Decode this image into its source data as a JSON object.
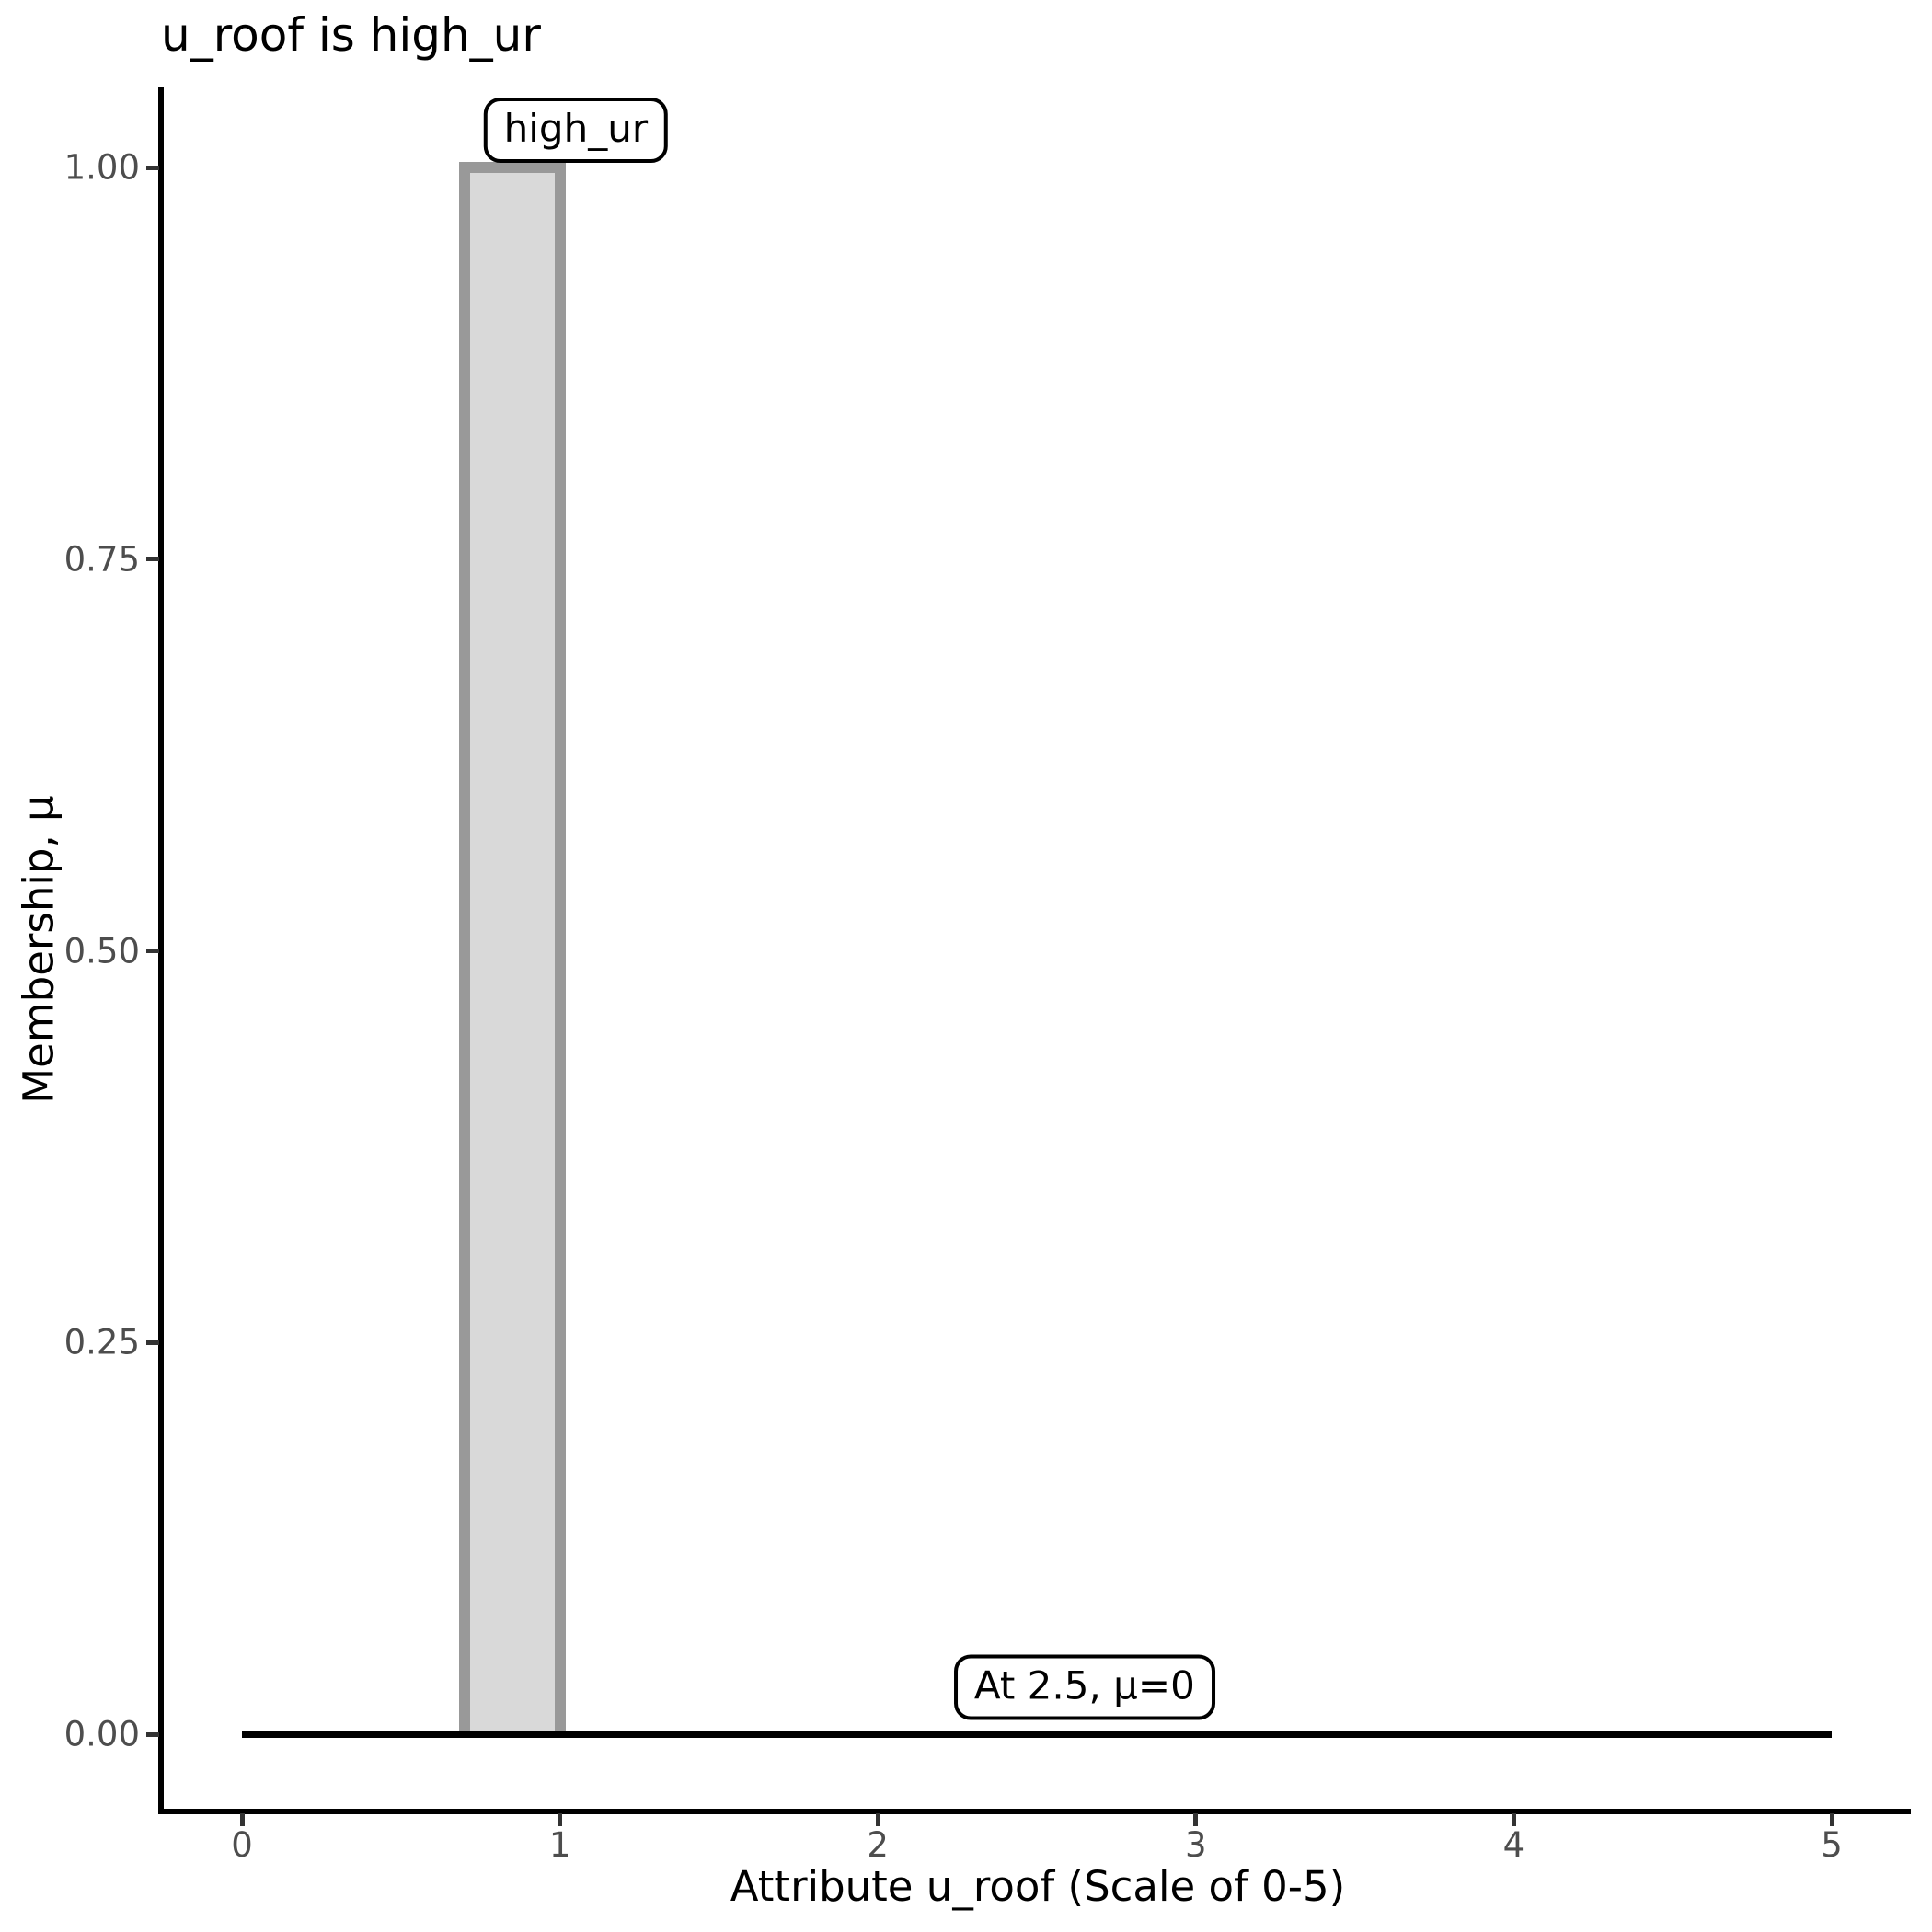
{
  "figure": {
    "title": "u_roof is high_ur",
    "background": "#FFFFFF"
  },
  "colors": {
    "bar_fill": "#D9D9D9",
    "bar_border": "#999999",
    "axis_line": "#000000",
    "tick_mark": "#333333",
    "tick_label": "#4D4D4D",
    "title_text": "#000000",
    "baseline": "#000000",
    "annotation_box_fill": "#FFFFFF",
    "annotation_box_border": "#000000"
  },
  "chart_data": {
    "type": "area",
    "title": "u_roof is high_ur",
    "xlabel": "Attribute u_roof (Scale of 0-5)",
    "ylabel": "Membership, μ",
    "xlim": [
      0,
      5
    ],
    "ylim": [
      0,
      1
    ],
    "grid": "off",
    "legend": "none",
    "x_tick_values": [
      0,
      1,
      2,
      3,
      4,
      5
    ],
    "x_ticks": [
      "0",
      "1",
      "2",
      "3",
      "4",
      "5"
    ],
    "y_tick_values": [
      0,
      0.25,
      0.5,
      0.75,
      1.0
    ],
    "y_ticks": [
      "0.00",
      "0.25",
      "0.50",
      "0.75",
      "1.00"
    ],
    "series": [
      {
        "name": "high_ur membership function",
        "kind": "rect",
        "xmin": 0.7,
        "xmax": 1.0,
        "ymin": 0,
        "ymax": 1.0,
        "fill": "#D9D9D9",
        "stroke": "#999999"
      },
      {
        "name": "zero membership baseline",
        "kind": "segment",
        "x": [
          0,
          5
        ],
        "y": [
          0,
          0
        ],
        "stroke": "#000000"
      }
    ],
    "annotations": [
      {
        "text": "high_ur",
        "x": 1.05,
        "y": 1.0,
        "anchor": "bottom",
        "style": "rounded-box"
      },
      {
        "text": "At 2.5, μ=0",
        "x": 2.65,
        "y": 0.03,
        "anchor": "center",
        "style": "rounded-box"
      }
    ]
  }
}
